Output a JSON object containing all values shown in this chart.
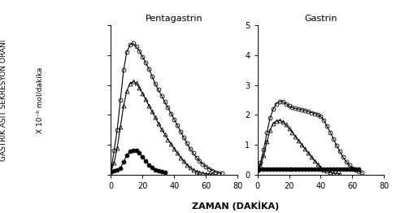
{
  "title_left": "Pentagastrin",
  "title_right": "Gastrin",
  "xlabel": "ZAMAN (DAKİKA)",
  "ylabel_line1": "GASTRİK ASİT SEKRESYON ORANI",
  "ylabel_line2": "X 10⁻⁶ mol/dakika",
  "ylim": [
    0,
    5
  ],
  "xlim": [
    0,
    80
  ],
  "yticks": [
    0,
    1,
    2,
    3,
    4,
    5
  ],
  "xticks": [
    0,
    20,
    40,
    60,
    80
  ],
  "penta_circle_large": {
    "x": [
      0,
      2,
      4,
      6,
      8,
      10,
      12,
      14,
      16,
      18,
      20,
      22,
      24,
      26,
      28,
      30,
      32,
      34,
      36,
      38,
      40,
      42,
      44,
      46,
      48,
      50,
      52,
      54,
      56,
      58,
      60,
      62,
      64,
      66,
      68,
      70
    ],
    "y": [
      0.1,
      0.8,
      1.5,
      2.5,
      3.5,
      4.1,
      4.35,
      4.4,
      4.3,
      4.15,
      3.95,
      3.75,
      3.55,
      3.3,
      3.05,
      2.85,
      2.65,
      2.45,
      2.25,
      2.05,
      1.85,
      1.65,
      1.45,
      1.25,
      1.05,
      0.87,
      0.72,
      0.58,
      0.46,
      0.36,
      0.27,
      0.2,
      0.14,
      0.09,
      0.06,
      0.04
    ],
    "marker": "o",
    "markersize": 3.5,
    "fillstyle": "none",
    "linewidth": 0.8
  },
  "penta_triangle": {
    "x": [
      0,
      2,
      4,
      6,
      8,
      10,
      12,
      14,
      16,
      18,
      20,
      22,
      24,
      26,
      28,
      30,
      32,
      34,
      36,
      38,
      40,
      42,
      44,
      46,
      48,
      50,
      52,
      54,
      56,
      58,
      60,
      62,
      64
    ],
    "y": [
      0.1,
      0.4,
      0.9,
      1.6,
      2.3,
      2.8,
      3.05,
      3.12,
      3.08,
      2.9,
      2.72,
      2.52,
      2.32,
      2.12,
      1.92,
      1.72,
      1.52,
      1.35,
      1.18,
      1.02,
      0.87,
      0.72,
      0.58,
      0.45,
      0.33,
      0.23,
      0.16,
      0.1,
      0.07,
      0.05,
      0.03,
      0.02,
      0.02
    ],
    "marker": "^",
    "markersize": 3.5,
    "fillstyle": "none",
    "linewidth": 0.8
  },
  "penta_filled": {
    "x": [
      0,
      2,
      4,
      6,
      8,
      10,
      12,
      14,
      16,
      18,
      20,
      22,
      24,
      26,
      28,
      30,
      32,
      34
    ],
    "y": [
      0.1,
      0.12,
      0.15,
      0.22,
      0.42,
      0.65,
      0.78,
      0.82,
      0.8,
      0.72,
      0.6,
      0.46,
      0.33,
      0.23,
      0.16,
      0.12,
      0.1,
      0.08
    ],
    "marker": "o",
    "markersize": 3.5,
    "fillstyle": "full",
    "linewidth": 0.8
  },
  "gastrin_circle_large": {
    "x": [
      0,
      2,
      4,
      6,
      8,
      10,
      12,
      14,
      16,
      18,
      20,
      22,
      24,
      26,
      28,
      30,
      32,
      34,
      36,
      38,
      40,
      42,
      44,
      46,
      48,
      50,
      52,
      54,
      56,
      58,
      60,
      62,
      64,
      66
    ],
    "y": [
      0.15,
      0.4,
      0.85,
      1.4,
      1.9,
      2.2,
      2.38,
      2.45,
      2.45,
      2.38,
      2.3,
      2.25,
      2.22,
      2.2,
      2.18,
      2.15,
      2.12,
      2.08,
      2.05,
      2.02,
      1.95,
      1.82,
      1.62,
      1.42,
      1.2,
      0.98,
      0.78,
      0.6,
      0.44,
      0.32,
      0.22,
      0.15,
      0.1,
      0.07
    ],
    "marker": "o",
    "markersize": 3.5,
    "fillstyle": "none",
    "linewidth": 0.8
  },
  "gastrin_triangle": {
    "x": [
      0,
      2,
      4,
      6,
      8,
      10,
      12,
      14,
      16,
      18,
      20,
      22,
      24,
      26,
      28,
      30,
      32,
      34,
      36,
      38,
      40,
      42,
      44,
      46,
      48,
      50,
      52
    ],
    "y": [
      0.15,
      0.3,
      0.65,
      1.1,
      1.5,
      1.72,
      1.8,
      1.82,
      1.78,
      1.68,
      1.55,
      1.42,
      1.28,
      1.14,
      1.0,
      0.87,
      0.73,
      0.6,
      0.47,
      0.35,
      0.25,
      0.17,
      0.12,
      0.08,
      0.05,
      0.04,
      0.03
    ],
    "marker": "^",
    "markersize": 3.5,
    "fillstyle": "none",
    "linewidth": 0.8
  },
  "gastrin_filled": {
    "x": [
      0,
      2,
      4,
      6,
      8,
      10,
      12,
      14,
      16,
      18,
      20,
      22,
      24,
      26,
      28,
      30,
      32,
      34,
      36,
      38,
      40,
      42,
      44,
      46,
      48,
      50,
      52,
      54,
      56,
      58,
      60,
      62,
      64
    ],
    "y": [
      0.15,
      0.18,
      0.18,
      0.18,
      0.18,
      0.18,
      0.18,
      0.18,
      0.18,
      0.18,
      0.18,
      0.18,
      0.18,
      0.18,
      0.18,
      0.18,
      0.18,
      0.18,
      0.18,
      0.18,
      0.18,
      0.18,
      0.18,
      0.18,
      0.18,
      0.18,
      0.18,
      0.18,
      0.18,
      0.18,
      0.18,
      0.18,
      0.18
    ],
    "marker": "o",
    "markersize": 3.5,
    "fillstyle": "full",
    "linewidth": 0.8
  }
}
